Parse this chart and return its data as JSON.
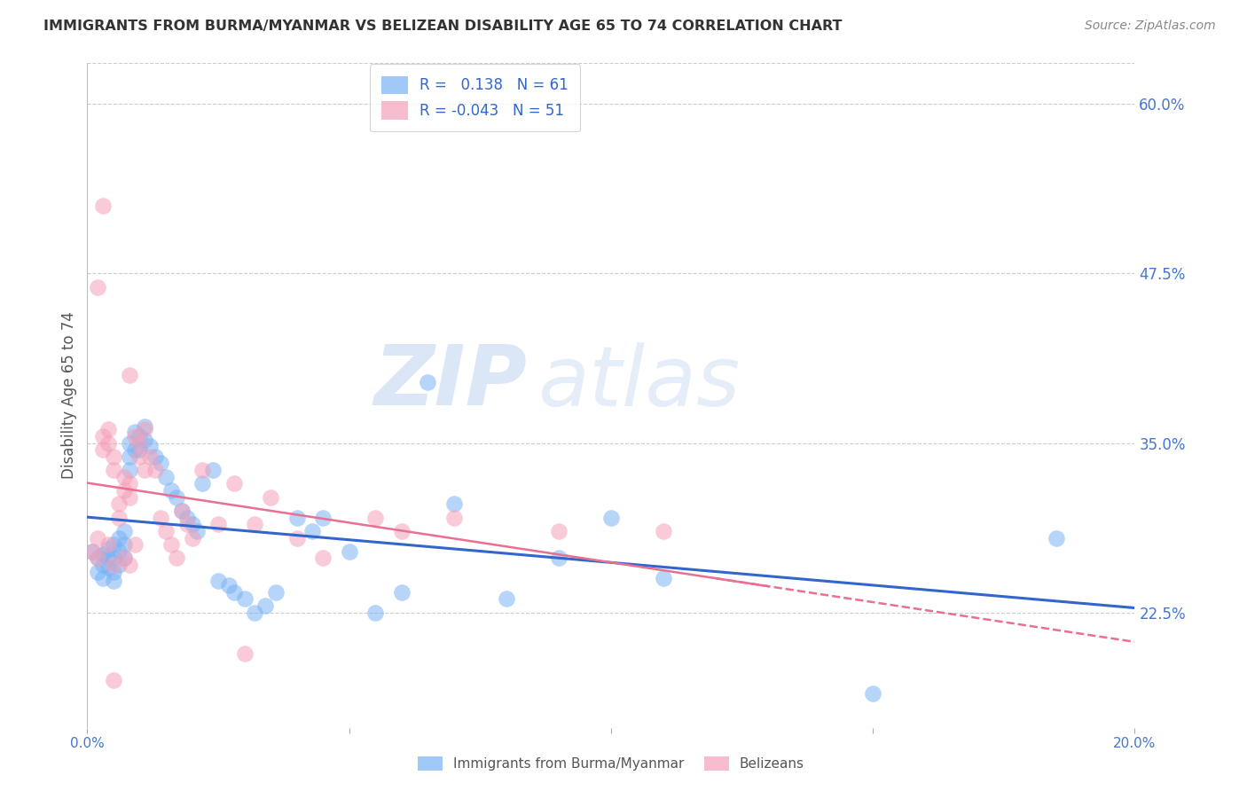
{
  "title": "IMMIGRANTS FROM BURMA/MYANMAR VS BELIZEAN DISABILITY AGE 65 TO 74 CORRELATION CHART",
  "source": "Source: ZipAtlas.com",
  "ylabel": "Disability Age 65 to 74",
  "xlim": [
    0.0,
    0.2
  ],
  "ylim": [
    0.14,
    0.63
  ],
  "ytick_right_vals": [
    0.6,
    0.475,
    0.35,
    0.225
  ],
  "ytick_right_labels": [
    "60.0%",
    "47.5%",
    "35.0%",
    "22.5%"
  ],
  "grid_color": "#cccccc",
  "background_color": "#ffffff",
  "blue_color": "#7ab3f5",
  "pink_color": "#f5a0b8",
  "blue_R": 0.138,
  "blue_N": 61,
  "pink_R": -0.043,
  "pink_N": 51,
  "watermark_zip": "ZIP",
  "watermark_atlas": "atlas",
  "blue_line_color": "#3366cc",
  "pink_line_color": "#e87090",
  "blue_scatter_x": [
    0.001,
    0.002,
    0.002,
    0.003,
    0.003,
    0.003,
    0.004,
    0.004,
    0.004,
    0.005,
    0.005,
    0.005,
    0.005,
    0.006,
    0.006,
    0.006,
    0.007,
    0.007,
    0.007,
    0.008,
    0.008,
    0.008,
    0.009,
    0.009,
    0.01,
    0.01,
    0.011,
    0.011,
    0.012,
    0.013,
    0.014,
    0.015,
    0.016,
    0.017,
    0.018,
    0.019,
    0.02,
    0.021,
    0.022,
    0.024,
    0.025,
    0.027,
    0.028,
    0.03,
    0.032,
    0.034,
    0.036,
    0.04,
    0.043,
    0.045,
    0.05,
    0.055,
    0.06,
    0.065,
    0.07,
    0.08,
    0.09,
    0.1,
    0.11,
    0.15,
    0.185
  ],
  "blue_scatter_y": [
    0.27,
    0.265,
    0.255,
    0.268,
    0.26,
    0.25,
    0.272,
    0.265,
    0.258,
    0.275,
    0.265,
    0.255,
    0.248,
    0.28,
    0.27,
    0.26,
    0.285,
    0.275,
    0.265,
    0.35,
    0.34,
    0.33,
    0.358,
    0.345,
    0.355,
    0.345,
    0.362,
    0.352,
    0.348,
    0.34,
    0.335,
    0.325,
    0.315,
    0.31,
    0.3,
    0.295,
    0.29,
    0.285,
    0.32,
    0.33,
    0.248,
    0.245,
    0.24,
    0.235,
    0.225,
    0.23,
    0.24,
    0.295,
    0.285,
    0.295,
    0.27,
    0.225,
    0.24,
    0.395,
    0.305,
    0.235,
    0.265,
    0.295,
    0.25,
    0.165,
    0.28
  ],
  "pink_scatter_x": [
    0.001,
    0.002,
    0.002,
    0.003,
    0.003,
    0.004,
    0.004,
    0.004,
    0.005,
    0.005,
    0.005,
    0.006,
    0.006,
    0.007,
    0.007,
    0.007,
    0.008,
    0.008,
    0.008,
    0.009,
    0.009,
    0.01,
    0.01,
    0.011,
    0.011,
    0.012,
    0.013,
    0.014,
    0.015,
    0.016,
    0.017,
    0.018,
    0.019,
    0.02,
    0.022,
    0.025,
    0.028,
    0.03,
    0.032,
    0.035,
    0.04,
    0.045,
    0.055,
    0.06,
    0.07,
    0.09,
    0.11,
    0.002,
    0.005,
    0.008,
    0.003
  ],
  "pink_scatter_y": [
    0.27,
    0.28,
    0.265,
    0.355,
    0.345,
    0.36,
    0.35,
    0.275,
    0.34,
    0.33,
    0.26,
    0.305,
    0.295,
    0.325,
    0.315,
    0.265,
    0.31,
    0.32,
    0.26,
    0.275,
    0.355,
    0.35,
    0.34,
    0.36,
    0.33,
    0.34,
    0.33,
    0.295,
    0.285,
    0.275,
    0.265,
    0.3,
    0.29,
    0.28,
    0.33,
    0.29,
    0.32,
    0.195,
    0.29,
    0.31,
    0.28,
    0.265,
    0.295,
    0.285,
    0.295,
    0.285,
    0.285,
    0.465,
    0.175,
    0.4,
    0.525
  ]
}
